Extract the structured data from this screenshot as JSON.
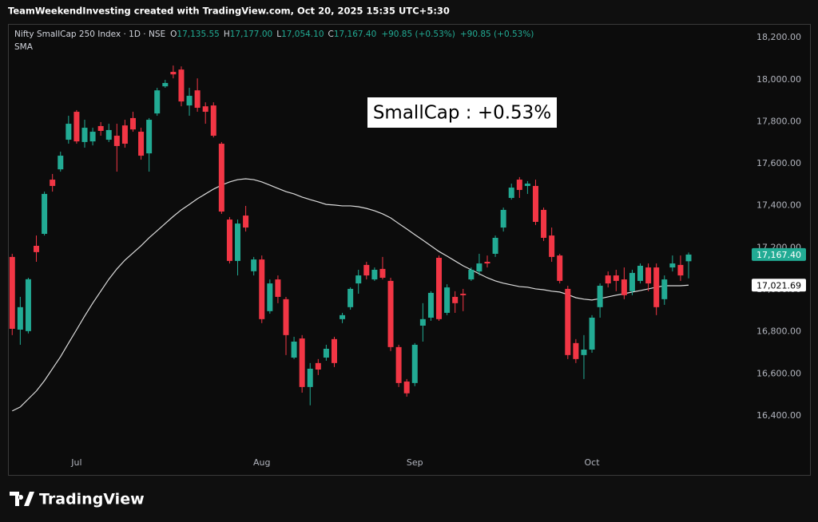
{
  "header": {
    "attribution": "TeamWeekendInvesting created with TradingView.com, Oct 20, 2025 15:35 UTC+5:30"
  },
  "footer": {
    "logo": "TradingView"
  },
  "chart_data": {
    "type": "candlestick",
    "title": "Nifty SmallCap 250 Index · 1D · NSE",
    "ohlc_legend": [
      {
        "key": "O",
        "label": "17,135.55"
      },
      {
        "key": "H",
        "label": "17,177.00"
      },
      {
        "key": "L",
        "label": "17,054.10"
      },
      {
        "key": "C",
        "label": "17,167.40"
      }
    ],
    "change_labels": [
      "+90.85 (+0.53%)",
      "+90.85 (+0.53%)"
    ],
    "annotation": "SmallCap : +0.53%",
    "categories": [
      null,
      null,
      null,
      null,
      null,
      null,
      null,
      null,
      "Jul",
      null,
      null,
      null,
      null,
      null,
      null,
      null,
      null,
      null,
      null,
      null,
      null,
      null,
      null,
      null,
      null,
      null,
      null,
      null,
      null,
      null,
      null,
      "Aug",
      null,
      null,
      null,
      null,
      null,
      null,
      null,
      null,
      null,
      null,
      null,
      null,
      null,
      null,
      null,
      null,
      null,
      null,
      "Sep",
      null,
      null,
      null,
      null,
      null,
      null,
      null,
      null,
      null,
      null,
      null,
      null,
      null,
      null,
      null,
      null,
      null,
      null,
      null,
      null,
      null,
      "Oct",
      null,
      null,
      null,
      null,
      null,
      null,
      null,
      null,
      null,
      null,
      null,
      null
    ],
    "open": [
      17156,
      16810,
      16803,
      17209,
      17266,
      17524,
      17573,
      17714,
      17847,
      17703,
      17706,
      17779,
      17714,
      17733,
      17782,
      17817,
      17752,
      17649,
      17839,
      17968,
      18037,
      18048,
      17877,
      17949,
      17873,
      17877,
      17695,
      17334,
      17137,
      17353,
      17088,
      17144,
      16898,
      17049,
      16955,
      16677,
      16768,
      16537,
      16651,
      16677,
      16765,
      16860,
      16917,
      17030,
      17118,
      17049,
      17099,
      17042,
      16727,
      16563,
      16556,
      16829,
      16867,
      17152,
      16890,
      16966,
      16981,
      17049,
      17087,
      17133,
      17171,
      17296,
      17437,
      17524,
      17494,
      17494,
      17380,
      17258,
      17163,
      17004,
      16746,
      16689,
      16715,
      16917,
      17068,
      17068,
      17049,
      16993,
      17042,
      17106,
      17106,
      16955,
      17106,
      17118,
      17135.55
    ],
    "high": [
      17171,
      16966,
      17057,
      17258,
      17467,
      17551,
      17657,
      17828,
      17855,
      17809,
      17771,
      17798,
      17790,
      17790,
      17809,
      17847,
      17771,
      17817,
      17961,
      17999,
      18067,
      18063,
      17961,
      18006,
      17892,
      17892,
      17703,
      17346,
      17334,
      17399,
      17156,
      17163,
      17049,
      17068,
      16966,
      16776,
      16784,
      16651,
      16670,
      16738,
      16776,
      16890,
      17011,
      17095,
      17133,
      17106,
      17156,
      17057,
      16738,
      16575,
      16746,
      16936,
      16993,
      17163,
      17026,
      16993,
      17004,
      17106,
      17171,
      17163,
      17258,
      17391,
      17505,
      17536,
      17517,
      17524,
      17391,
      17296,
      17171,
      17019,
      16765,
      16784,
      16879,
      17030,
      17087,
      17095,
      17106,
      17095,
      17125,
      17125,
      17125,
      17068,
      17163,
      17163,
      17177
    ],
    "low": [
      16784,
      16738,
      16792,
      17133,
      17258,
      17467,
      17562,
      17695,
      17695,
      17676,
      17687,
      17733,
      17703,
      17562,
      17676,
      17752,
      17619,
      17562,
      17828,
      17961,
      18006,
      17873,
      17828,
      17847,
      17790,
      17725,
      17361,
      17125,
      17068,
      17277,
      17068,
      16841,
      16886,
      16936,
      16689,
      16670,
      16510,
      16450,
      16594,
      16662,
      16632,
      16841,
      16905,
      16981,
      17049,
      17042,
      17049,
      16708,
      16537,
      16491,
      16541,
      16753,
      16852,
      16852,
      16879,
      16890,
      16898,
      17042,
      17068,
      17106,
      17156,
      17277,
      17429,
      17437,
      17456,
      17308,
      17232,
      17133,
      17030,
      16670,
      16651,
      16575,
      16700,
      16867,
      17011,
      16993,
      16955,
      16974,
      17030,
      16993,
      16879,
      16928,
      17087,
      17042,
      17054.1
    ],
    "close": [
      16814,
      16917,
      17050,
      17179,
      17456,
      17494,
      17638,
      17790,
      17706,
      17771,
      17752,
      17756,
      17760,
      17684,
      17695,
      17763,
      17638,
      17809,
      17949,
      17984,
      18025,
      17896,
      17923,
      17866,
      17847,
      17733,
      17372,
      17137,
      17315,
      17296,
      17144,
      16860,
      17030,
      16966,
      16784,
      16753,
      16537,
      16624,
      16620,
      16719,
      16651,
      16879,
      17004,
      17068,
      17068,
      17095,
      17057,
      16727,
      16556,
      16507,
      16738,
      16860,
      16985,
      16860,
      17011,
      16936,
      16974,
      17095,
      17125,
      17125,
      17247,
      17380,
      17486,
      17475,
      17505,
      17323,
      17247,
      17156,
      17042,
      16689,
      16670,
      16715,
      16867,
      17019,
      17030,
      17042,
      16974,
      17080,
      17114,
      17030,
      16917,
      17049,
      17125,
      17068,
      17167.4
    ],
    "up_color": "#22ab94",
    "down_color": "#f23645",
    "series": [
      {
        "name": "SMA",
        "color": "#dcdcdc",
        "values": [
          16423,
          16442,
          16480,
          16518,
          16567,
          16624,
          16681,
          16746,
          16810,
          16875,
          16936,
          16993,
          17050,
          17099,
          17141,
          17175,
          17209,
          17247,
          17281,
          17315,
          17349,
          17380,
          17406,
          17433,
          17456,
          17479,
          17498,
          17513,
          17524,
          17528,
          17524,
          17513,
          17498,
          17482,
          17467,
          17456,
          17441,
          17429,
          17418,
          17406,
          17403,
          17399,
          17399,
          17395,
          17387,
          17376,
          17361,
          17342,
          17315,
          17289,
          17262,
          17236,
          17209,
          17182,
          17160,
          17137,
          17114,
          17095,
          17076,
          17057,
          17042,
          17031,
          17023,
          17015,
          17012,
          17004,
          17000,
          16993,
          16989,
          16977,
          16962,
          16955,
          16951,
          16958,
          16966,
          16974,
          16981,
          16989,
          16996,
          17004,
          17012,
          17019,
          17019,
          17019,
          17021.69
        ]
      }
    ],
    "price_tags": [
      {
        "value": 17167.4,
        "label": "17,167.40",
        "color": "#22ab94",
        "text_color": "#ffffff"
      },
      {
        "value": 17021.69,
        "label": "17,021.69",
        "color": "#ffffff",
        "text_color": "#000000"
      }
    ],
    "ylim": [
      16130,
      18265
    ],
    "yticks": [
      {
        "value": 16400,
        "label": "16,400.00"
      },
      {
        "value": 16600,
        "label": "16,600.00"
      },
      {
        "value": 16800,
        "label": "16,800.00"
      },
      {
        "value": 17000,
        "label": "17,000.00"
      },
      {
        "value": 17200,
        "label": "17,200.00"
      },
      {
        "value": 17400,
        "label": "17,400.00"
      },
      {
        "value": 17600,
        "label": "17,600.00"
      },
      {
        "value": 17800,
        "label": "17,800.00"
      },
      {
        "value": 18000,
        "label": "18,000.00"
      },
      {
        "value": 18200,
        "label": "18,200.00"
      }
    ],
    "grid": false
  }
}
